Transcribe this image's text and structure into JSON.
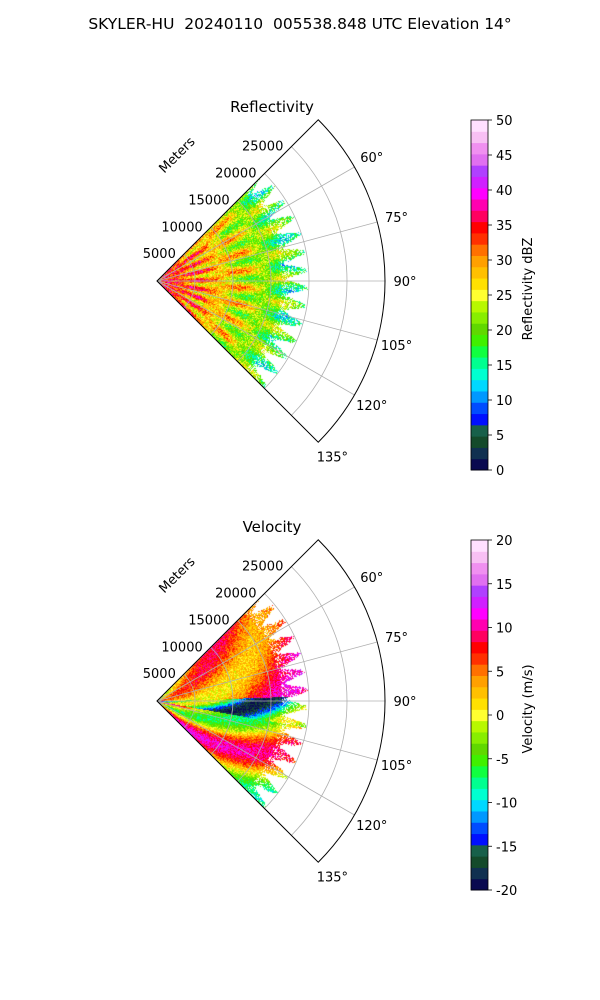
{
  "suptitle": "SKYLER-HU  20240110  005538.848 UTC Elevation 14°",
  "chart_data": [
    {
      "type": "polar sector (PPI)",
      "title": "Reflectivity",
      "radial_label": "Meters",
      "theta_range_deg": [
        45,
        135
      ],
      "theta_ticks": [
        60,
        75,
        90,
        105,
        120,
        135
      ],
      "theta_tick_labels": [
        "60°",
        "75°",
        "90°",
        "105°",
        "120°",
        "135°"
      ],
      "r_max": 30000,
      "r_ticks": [
        5000,
        10000,
        15000,
        20000,
        25000
      ],
      "r_tick_labels": [
        "5000",
        "10000",
        "15000",
        "20000",
        "25000"
      ],
      "data_extent_m": 20000,
      "colorbar": {
        "label": "Reflectivity dBZ",
        "range": [
          0,
          50
        ],
        "ticks": [
          0,
          5,
          10,
          15,
          20,
          25,
          30,
          35,
          40,
          45,
          50
        ],
        "colors": [
          "#0a0a50",
          "#103050",
          "#144a2a",
          "#18604a",
          "#0010ff",
          "#004cff",
          "#0098ff",
          "#00d8ff",
          "#00ffd0",
          "#00ff90",
          "#10ff40",
          "#40f000",
          "#60d800",
          "#88ee00",
          "#b8f800",
          "#ffff30",
          "#ffe000",
          "#ffc000",
          "#ffa000",
          "#ff7000",
          "#ff3000",
          "#ff0000",
          "#ff0060",
          "#ff00b0",
          "#ff00ff",
          "#d020ff",
          "#b040ff",
          "#e070f0",
          "#f090f0",
          "#f8c0f4",
          "#ffe0ff"
        ]
      },
      "grid": true
    },
    {
      "type": "polar sector (PPI)",
      "title": "Velocity",
      "radial_label": "Meters",
      "theta_range_deg": [
        45,
        135
      ],
      "theta_ticks": [
        60,
        75,
        90,
        105,
        120,
        135
      ],
      "theta_tick_labels": [
        "60°",
        "75°",
        "90°",
        "105°",
        "120°",
        "135°"
      ],
      "r_max": 30000,
      "r_ticks": [
        5000,
        10000,
        15000,
        20000,
        25000
      ],
      "r_tick_labels": [
        "5000",
        "10000",
        "15000",
        "20000",
        "25000"
      ],
      "data_extent_m": 20000,
      "colorbar": {
        "label": "Velocity (m/s)",
        "range": [
          -20,
          20
        ],
        "ticks": [
          -20,
          -15,
          -10,
          -5,
          0,
          5,
          10,
          15,
          20
        ],
        "colors": [
          "#0a0a50",
          "#103050",
          "#144a2a",
          "#18604a",
          "#0010ff",
          "#004cff",
          "#0098ff",
          "#00d8ff",
          "#00ffd0",
          "#00ff90",
          "#10ff40",
          "#40f000",
          "#60d800",
          "#88ee00",
          "#b8f800",
          "#ffff30",
          "#ffe000",
          "#ffc000",
          "#ffa000",
          "#ff7000",
          "#ff3000",
          "#ff0000",
          "#ff0060",
          "#ff00b0",
          "#ff00ff",
          "#d020ff",
          "#b040ff",
          "#e070f0",
          "#f090f0",
          "#f8c0f4",
          "#ffe0ff"
        ]
      },
      "grid": true
    }
  ]
}
